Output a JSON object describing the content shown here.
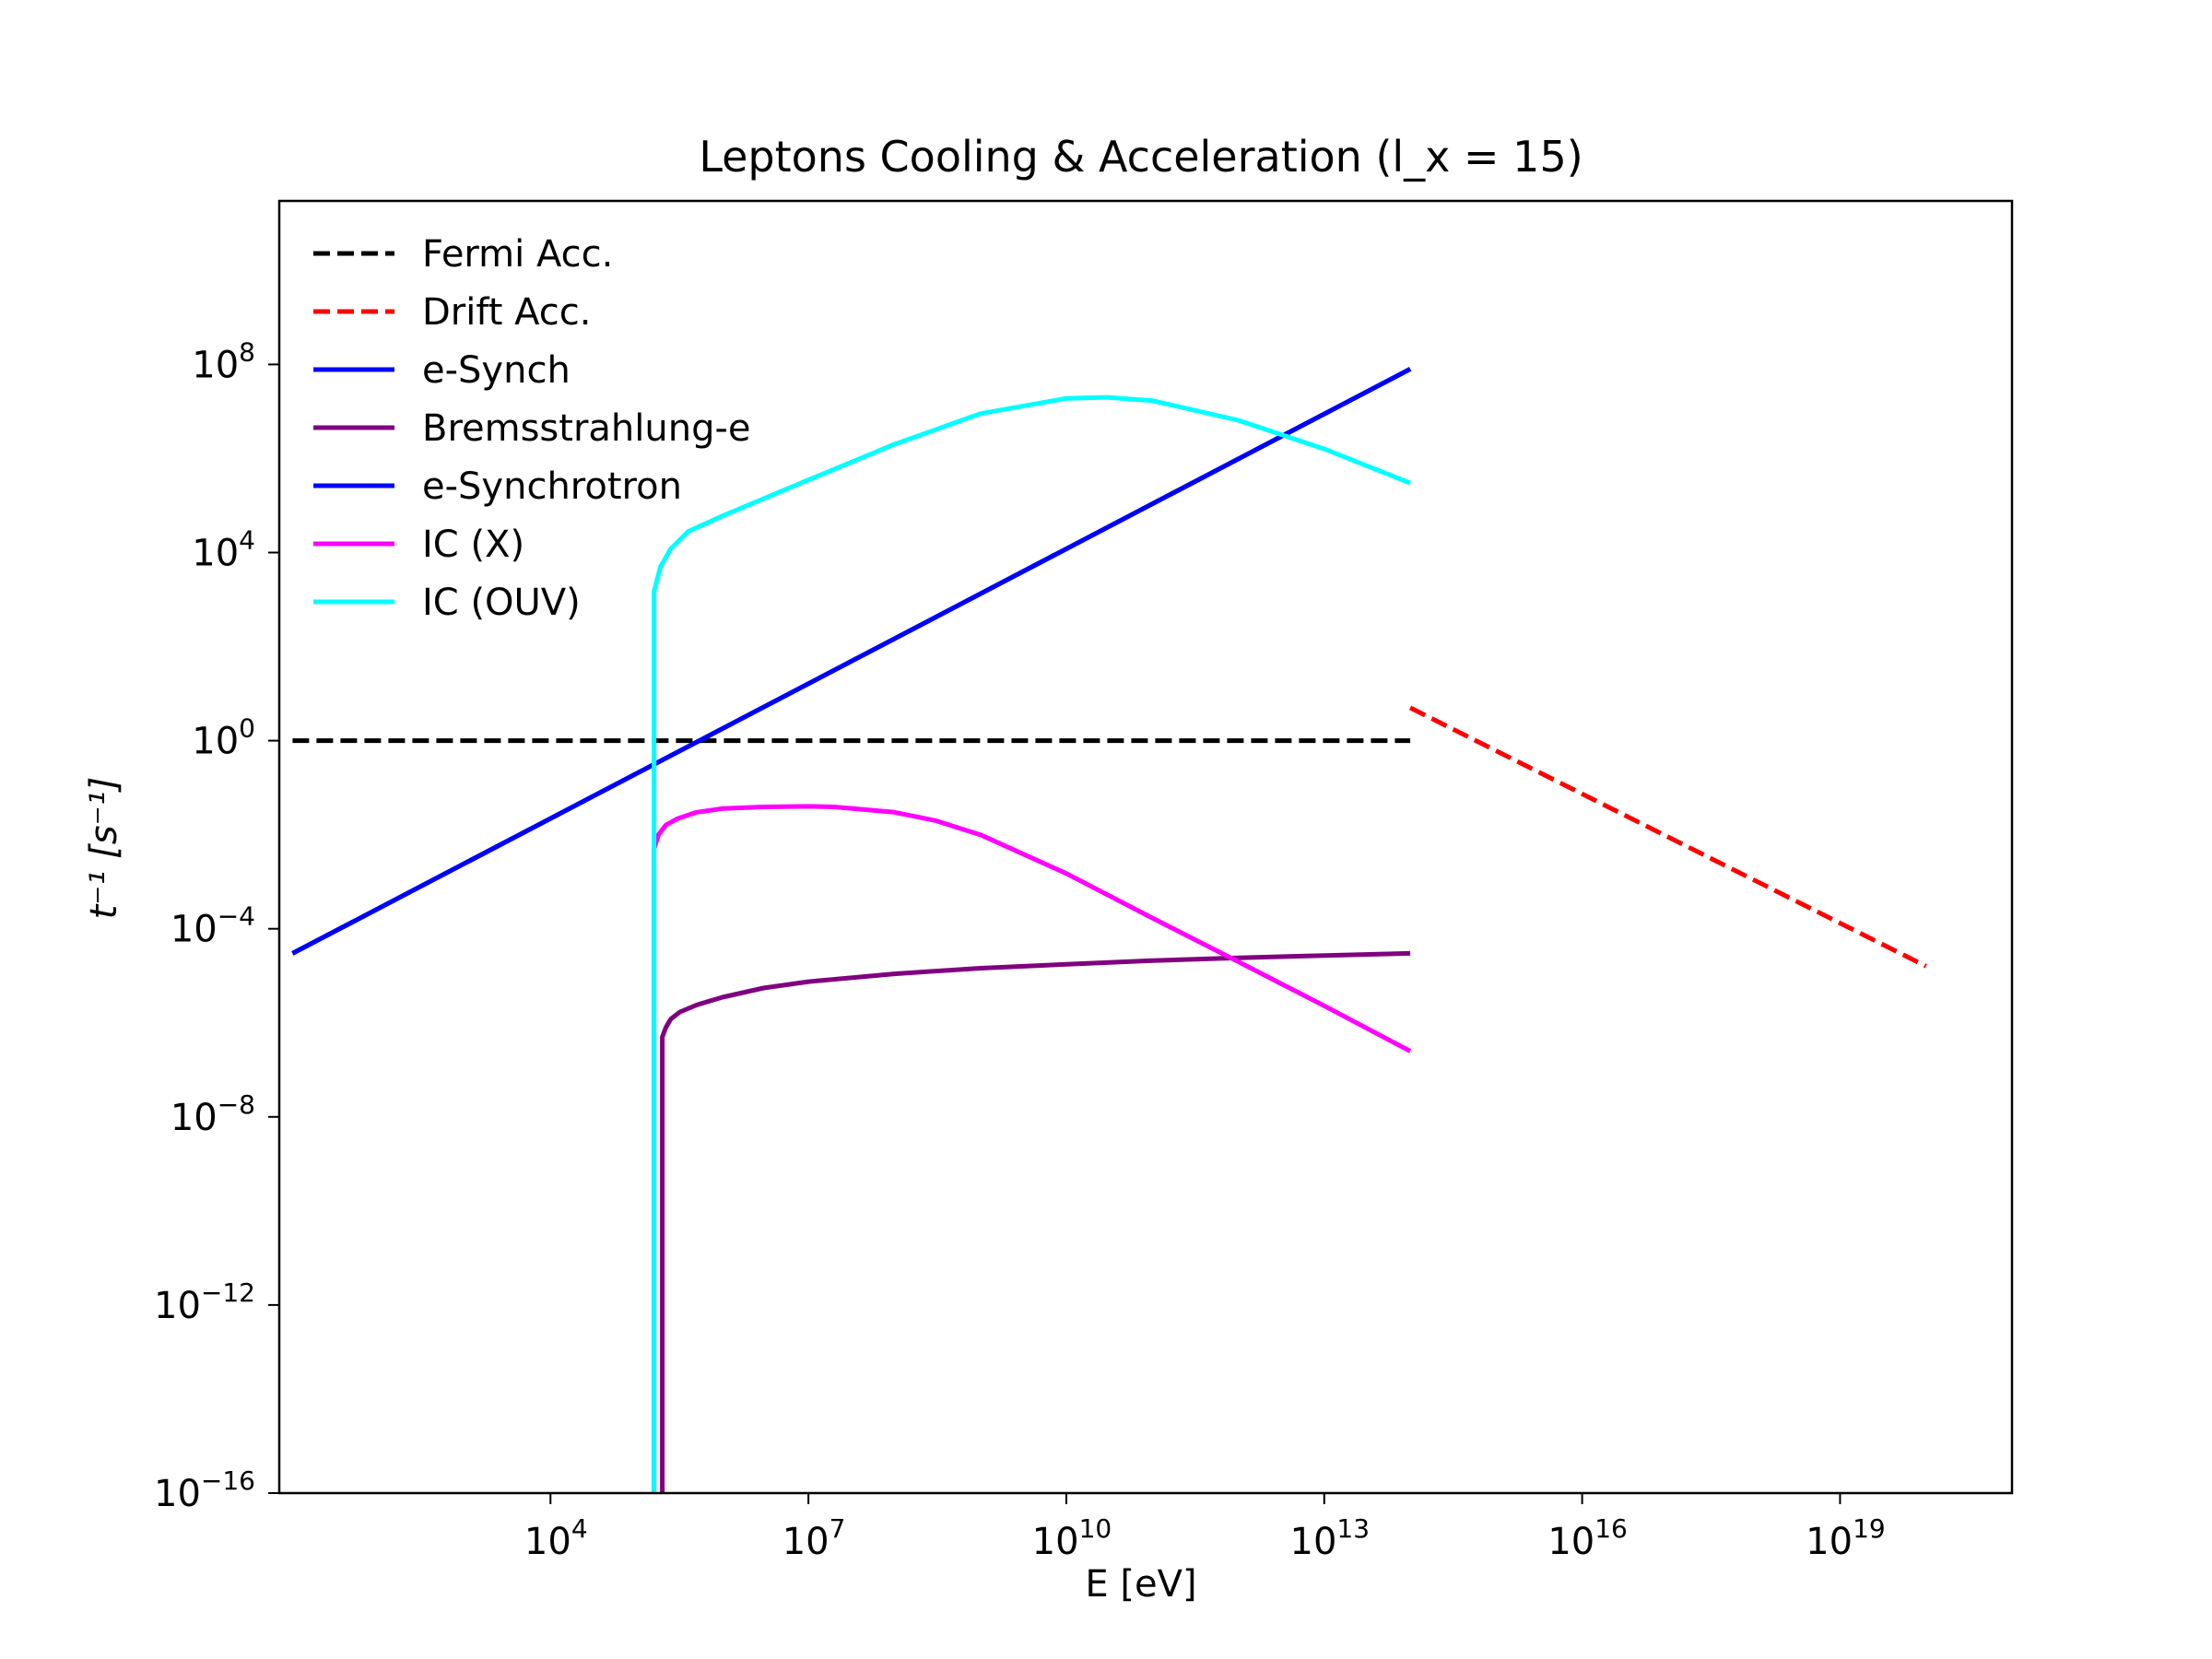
{
  "chart_data": {
    "type": "line",
    "title": "Leptons Cooling & Acceleration (l_x = 15)",
    "xlabel": "E [eV]",
    "ylabel": "t⁻¹ [s⁻¹]",
    "x_scale": "log",
    "y_scale": "log",
    "xlim": [
      7.0,
      1e+21
    ],
    "ylim": [
      1e-16,
      300000000000.0
    ],
    "grid": false,
    "legend_position": "upper-left",
    "x_ticks": [
      {
        "value": 10000.0,
        "base": "10",
        "exp": "4"
      },
      {
        "value": 10000000.0,
        "base": "10",
        "exp": "7"
      },
      {
        "value": 10000000000.0,
        "base": "10",
        "exp": "10"
      },
      {
        "value": 10000000000000.0,
        "base": "10",
        "exp": "13"
      },
      {
        "value": 1e+16,
        "base": "10",
        "exp": "16"
      },
      {
        "value": 1e+19,
        "base": "10",
        "exp": "19"
      }
    ],
    "y_ticks": [
      {
        "value": 1e-16,
        "base": "10",
        "exp": "−16"
      },
      {
        "value": 1e-12,
        "base": "10",
        "exp": "−12"
      },
      {
        "value": 1e-08,
        "base": "10",
        "exp": "−8"
      },
      {
        "value": 0.0001,
        "base": "10",
        "exp": "−4"
      },
      {
        "value": 1.0,
        "base": "10",
        "exp": "0"
      },
      {
        "value": 10000.0,
        "base": "10",
        "exp": "4"
      },
      {
        "value": 100000000.0,
        "base": "10",
        "exp": "8"
      }
    ],
    "series": [
      {
        "name": "Fermi Acc.",
        "color": "#000000",
        "dash": true,
        "x": [
          10.0,
          100000000000000.0
        ],
        "y": [
          1.0,
          1.0
        ]
      },
      {
        "name": "Drift Acc.",
        "color": "#ff0000",
        "dash": true,
        "x": [
          100000000000000.0,
          1e+20
        ],
        "y": [
          5.0,
          1.6e-05
        ]
      },
      {
        "name": "e-Synch",
        "color": "#0000ff",
        "dash": false,
        "x": [
          10.0,
          100000000000000.0
        ],
        "y": [
          3e-05,
          80000000.0
        ]
      },
      {
        "name": "Bremsstrahlung-e",
        "color": "#800080",
        "dash": false,
        "x": [
          200000.0,
          200000.0,
          220000.0,
          250000.0,
          320000.0,
          500000.0,
          1000000.0,
          3000000.0,
          10000000.0,
          100000000.0,
          1000000000.0,
          10000000000.0,
          100000000000.0,
          1000000000000.0,
          10000000000000.0,
          100000000000000.0
        ],
        "y": [
          1e-16,
          5e-07,
          8e-07,
          1.2e-06,
          1.7e-06,
          2.4e-06,
          3.5e-06,
          5.5e-06,
          7.5e-06,
          1.1e-05,
          1.45e-05,
          1.75e-05,
          2.1e-05,
          2.4e-05,
          2.7e-05,
          3e-05
        ]
      },
      {
        "name": "e-Synchrotron",
        "color": "#0000ff",
        "dash": false,
        "x": [
          10.0,
          100000000000000.0
        ],
        "y": [
          3e-05,
          80000000.0
        ]
      },
      {
        "name": "IC (X)",
        "color": "#ff00ff",
        "dash": false,
        "x": [
          160000.0,
          160000.0,
          180000.0,
          220000.0,
          300000.0,
          500000.0,
          1000000.0,
          3000000.0,
          10000000.0,
          20000000.0,
          100000000.0,
          300000000.0,
          1000000000.0,
          10000000000.0,
          100000000000.0,
          1000000000000.0,
          10000000000000.0,
          100000000000000.0
        ],
        "y": [
          1e-16,
          0.005,
          0.01,
          0.016,
          0.022,
          0.03,
          0.036,
          0.039,
          0.04,
          0.039,
          0.03,
          0.02,
          0.01,
          0.0015,
          0.00017,
          2e-05,
          2.3e-06,
          2.5e-07
        ]
      },
      {
        "name": "IC (OUV)",
        "color": "#00ffff",
        "dash": false,
        "x": [
          160000.0,
          160000.0,
          190000.0,
          250000.0,
          400000.0,
          1000000.0,
          10000000.0,
          100000000.0,
          1000000000.0,
          10000000000.0,
          30000000000.0,
          100000000000.0,
          1000000000000.0,
          10000000000000.0,
          100000000000000.0
        ],
        "y": [
          1e-16,
          1500.0,
          5000.0,
          12000.0,
          28000.0,
          60000.0,
          350000.0,
          2000000.0,
          9000000.0,
          19000000.0,
          20000000.0,
          17000000.0,
          6500000.0,
          1600000.0,
          300000.0
        ]
      }
    ]
  }
}
